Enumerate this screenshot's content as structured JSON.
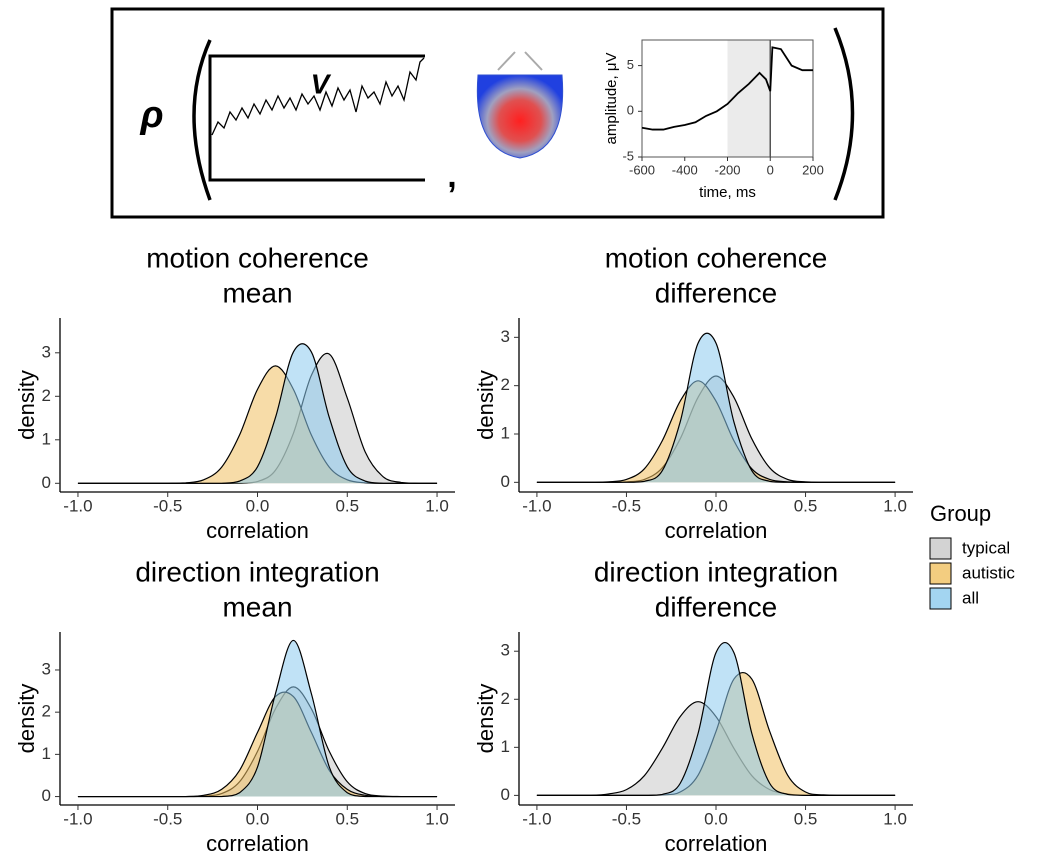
{
  "diagram": {
    "symbol": "ρ",
    "signal_label": "V",
    "separator": ","
  },
  "legend": {
    "title": "Group"
  },
  "chart_data": [
    {
      "type": "line",
      "x_label": "time, ms",
      "y_label": "amplitude, μV",
      "x": [
        -600,
        -550,
        -500,
        -450,
        -400,
        -350,
        -300,
        -250,
        -200,
        -150,
        -100,
        -50,
        -20,
        0,
        10,
        50,
        100,
        150,
        200
      ],
      "series": [
        {
          "color": "#000000",
          "values": [
            -1.8,
            -2.0,
            -2.0,
            -1.7,
            -1.5,
            -1.2,
            -0.5,
            0,
            0.8,
            2,
            3,
            4.2,
            3.5,
            2.2,
            7,
            6.8,
            5,
            4.5,
            4.5
          ]
        }
      ],
      "xlim": [
        -600,
        200
      ],
      "ylim": [
        -5,
        7.8
      ],
      "xticks": [
        -600,
        -400,
        -200,
        0,
        200
      ],
      "yticks": [
        -5,
        0,
        5
      ],
      "shaded_range": [
        -200,
        0
      ],
      "vline": 0
    },
    {
      "type": "density",
      "title_lines": [
        "motion coherence",
        "mean"
      ],
      "x_label": "correlation",
      "y_label": "density",
      "x": [
        -1.0,
        -0.9,
        -0.8,
        -0.7,
        -0.6,
        -0.5,
        -0.4,
        -0.3,
        -0.2,
        -0.1,
        0,
        0.1,
        0.2,
        0.3,
        0.4,
        0.5,
        0.6,
        0.7,
        0.8,
        0.9,
        1.0
      ],
      "series": [
        {
          "name": "typical",
          "color": "#c8c8c8",
          "values": [
            0,
            0,
            0,
            0,
            0,
            0,
            0,
            0,
            0,
            0,
            0.04,
            0.3,
            1.15,
            2.48,
            2.97,
            1.96,
            0.72,
            0.15,
            0.02,
            0,
            0
          ]
        },
        {
          "name": "autistic",
          "color": "#f0c060",
          "values": [
            0,
            0,
            0,
            0,
            0,
            0,
            0.01,
            0.08,
            0.37,
            1.11,
            2.16,
            2.7,
            2.16,
            1.11,
            0.37,
            0.08,
            0.01,
            0,
            0,
            0,
            0
          ]
        },
        {
          "name": "all",
          "color": "#8ccbee",
          "values": [
            0,
            0,
            0,
            0,
            0,
            0,
            0,
            0,
            0,
            0.05,
            0.38,
            1.51,
            3.02,
            3.02,
            1.51,
            0.38,
            0.05,
            0,
            0,
            0,
            0
          ]
        }
      ],
      "xlim": [
        -1.1,
        1.1
      ],
      "ylim": [
        -0.2,
        3.8
      ],
      "xticks": [
        {
          "value": -1.0,
          "label": "-1.0"
        },
        -0.5,
        {
          "value": 0,
          "label": "0.0"
        },
        0.5,
        {
          "value": 1.0,
          "label": "1.0"
        }
      ],
      "yticks": [
        0,
        1,
        2,
        3
      ]
    },
    {
      "type": "density",
      "title_lines": [
        "motion coherence",
        "difference"
      ],
      "x_label": "correlation",
      "y_label": "density",
      "x": [
        -1.0,
        -0.9,
        -0.8,
        -0.7,
        -0.6,
        -0.5,
        -0.4,
        -0.3,
        -0.2,
        -0.1,
        0,
        0.1,
        0.2,
        0.3,
        0.4,
        0.5,
        0.6,
        0.7,
        0.8,
        0.9,
        1.0
      ],
      "series": [
        {
          "name": "typical",
          "color": "#c8c8c8",
          "values": [
            0,
            0,
            0,
            0,
            0,
            0.01,
            0.06,
            0.3,
            0.9,
            1.76,
            2.2,
            1.76,
            0.9,
            0.3,
            0.06,
            0.01,
            0,
            0,
            0,
            0,
            0
          ]
        },
        {
          "name": "autistic",
          "color": "#f0c060",
          "values": [
            0,
            0,
            0,
            0,
            0.01,
            0.06,
            0.28,
            0.86,
            1.68,
            2.1,
            1.68,
            0.86,
            0.28,
            0.06,
            0.01,
            0,
            0,
            0,
            0,
            0,
            0
          ]
        },
        {
          "name": "all",
          "color": "#8ccbee",
          "values": [
            0,
            0,
            0,
            0,
            0,
            0,
            0.02,
            0.24,
            1.25,
            2.88,
            2.88,
            1.25,
            0.24,
            0.02,
            0,
            0,
            0,
            0,
            0,
            0,
            0
          ]
        }
      ],
      "xlim": [
        -1.1,
        1.1
      ],
      "ylim": [
        -0.2,
        3.4
      ],
      "xticks": [
        {
          "value": -1.0,
          "label": "-1.0"
        },
        -0.5,
        {
          "value": 0,
          "label": "0.0"
        },
        0.5,
        {
          "value": 1.0,
          "label": "1.0"
        }
      ],
      "yticks": [
        0,
        1,
        2,
        3
      ]
    },
    {
      "type": "density",
      "title_lines": [
        "direction integration",
        "mean"
      ],
      "x_label": "correlation",
      "y_label": "density",
      "x": [
        -1.0,
        -0.9,
        -0.8,
        -0.7,
        -0.6,
        -0.5,
        -0.4,
        -0.3,
        -0.2,
        -0.1,
        0,
        0.1,
        0.2,
        0.3,
        0.4,
        0.5,
        0.6,
        0.7,
        0.8,
        0.9,
        1.0
      ],
      "series": [
        {
          "name": "typical",
          "color": "#c8c8c8",
          "values": [
            0,
            0,
            0,
            0,
            0,
            0,
            0,
            0.01,
            0.07,
            0.35,
            1.07,
            2.08,
            2.6,
            2.08,
            1.07,
            0.35,
            0.07,
            0.01,
            0,
            0,
            0
          ]
        },
        {
          "name": "autistic",
          "color": "#f0c060",
          "values": [
            0,
            0,
            0,
            0,
            0,
            0,
            0,
            0.03,
            0.17,
            0.62,
            1.52,
            2.37,
            2.37,
            1.52,
            0.62,
            0.17,
            0.03,
            0,
            0,
            0,
            0
          ]
        },
        {
          "name": "all",
          "color": "#8ccbee",
          "values": [
            0,
            0,
            0,
            0,
            0,
            0,
            0,
            0,
            0,
            0.09,
            0.7,
            2.44,
            3.7,
            2.44,
            0.7,
            0.09,
            0,
            0,
            0,
            0,
            0
          ]
        }
      ],
      "xlim": [
        -1.1,
        1.1
      ],
      "ylim": [
        -0.2,
        3.9
      ],
      "xticks": [
        {
          "value": -1.0,
          "label": "-1.0"
        },
        -0.5,
        {
          "value": 0,
          "label": "0.0"
        },
        0.5,
        {
          "value": 1.0,
          "label": "1.0"
        }
      ],
      "yticks": [
        0,
        1,
        2,
        3
      ]
    },
    {
      "type": "density",
      "title_lines": [
        "direction integration",
        "difference"
      ],
      "x_label": "correlation",
      "y_label": "density",
      "x": [
        -1.0,
        -0.9,
        -0.8,
        -0.7,
        -0.6,
        -0.5,
        -0.4,
        -0.3,
        -0.2,
        -0.1,
        0,
        0.1,
        0.2,
        0.3,
        0.4,
        0.5,
        0.6,
        0.7,
        0.8,
        0.9,
        1.0
      ],
      "series": [
        {
          "name": "typical",
          "color": "#c8c8c8",
          "values": [
            0,
            0,
            0,
            0,
            0.03,
            0.12,
            0.41,
            0.98,
            1.64,
            1.95,
            1.64,
            0.98,
            0.41,
            0.12,
            0.03,
            0,
            0,
            0,
            0,
            0,
            0
          ]
        },
        {
          "name": "autistic",
          "color": "#f0c060",
          "values": [
            0,
            0,
            0,
            0,
            0,
            0,
            0,
            0.01,
            0.07,
            0.42,
            1.33,
            2.42,
            2.42,
            1.33,
            0.42,
            0.07,
            0.01,
            0,
            0,
            0,
            0
          ]
        },
        {
          "name": "all",
          "color": "#8ccbee",
          "values": [
            0,
            0,
            0,
            0,
            0,
            0,
            0,
            0.02,
            0.25,
            1.29,
            2.97,
            2.97,
            1.29,
            0.25,
            0.02,
            0,
            0,
            0,
            0,
            0,
            0
          ]
        }
      ],
      "xlim": [
        -1.1,
        1.1
      ],
      "ylim": [
        -0.2,
        3.4
      ],
      "xticks": [
        {
          "value": -1.0,
          "label": "-1.0"
        },
        -0.5,
        {
          "value": 0,
          "label": "0.0"
        },
        0.5,
        {
          "value": 1.0,
          "label": "1.0"
        }
      ],
      "yticks": [
        0,
        1,
        2,
        3
      ]
    }
  ]
}
